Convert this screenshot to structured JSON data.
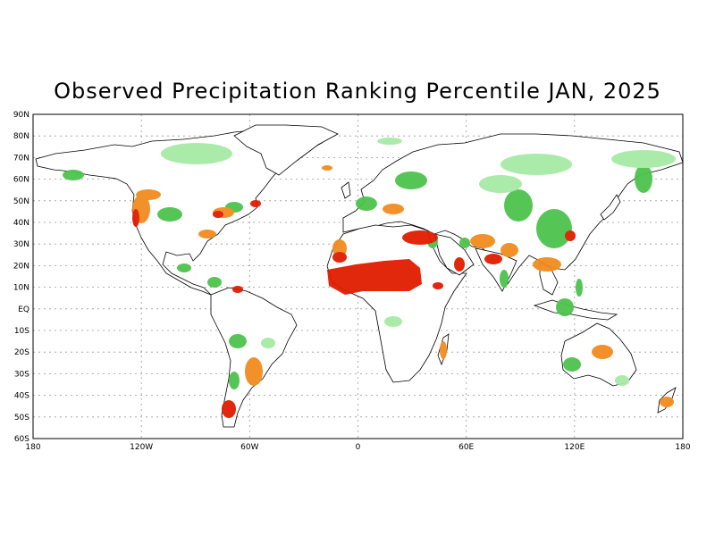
{
  "title": "Observed Precipitation Ranking Percentile JAN, 2025",
  "lat_labels": [
    "90N",
    "80N",
    "70N",
    "60N",
    "50N",
    "40N",
    "30N",
    "20N",
    "10N",
    "EQ",
    "10S",
    "20S",
    "30S",
    "40S",
    "50S",
    "60S"
  ],
  "lon_labels": [
    "180",
    "120W",
    "60W",
    "0",
    "60E",
    "120E",
    "180"
  ],
  "colors": {
    "very_dry": "#e01c00",
    "dry": "#f28c1e",
    "slightly_dry": "#f7b23b",
    "wet": "#4cc44c",
    "slightly_wet": "#a6eaa6",
    "grid": "#999999",
    "coast": "#000000"
  }
}
